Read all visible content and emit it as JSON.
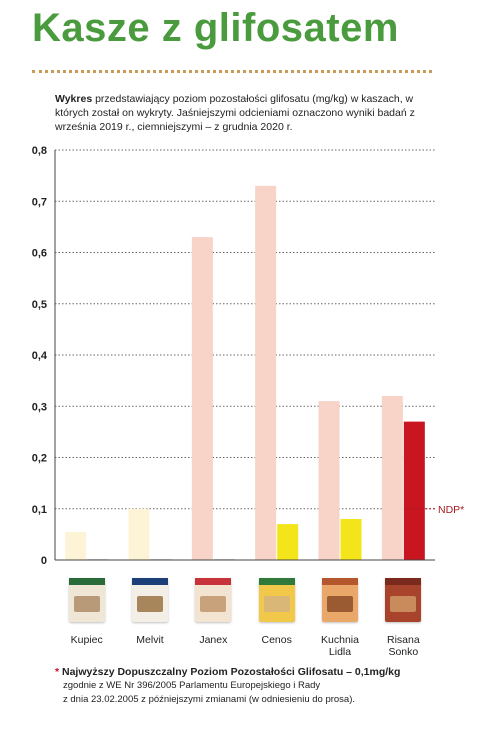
{
  "header": {
    "title": "Kasze z glifosatem",
    "desc_bold": "Wykres",
    "desc_rest": " przedstawiający poziom pozostałości glifosatu (mg/kg) w kaszach, w których został on wykryty. Jaśniejszymi odcieniami oznaczono wyniki badań z września 2019 r., ciemniejszymi – z grudnia 2020 r."
  },
  "chart_data": {
    "type": "bar",
    "categories": [
      "Kupiec",
      "Melvit",
      "Janex",
      "Cenos",
      "Kuchnia Lidla",
      "Risana Sonko"
    ],
    "category_lines": [
      [
        "Kupiec"
      ],
      [
        "Melvit"
      ],
      [
        "Janex"
      ],
      [
        "Cenos"
      ],
      [
        "Kuchnia",
        "Lidla"
      ],
      [
        "Risana",
        "Sonko"
      ]
    ],
    "series": [
      {
        "values": [
          0.055,
          0.1,
          0.63,
          0.73,
          0.31,
          0.32
        ]
      },
      {
        "values": [
          0.002,
          0.002,
          0.002,
          0.07,
          0.08,
          0.27
        ]
      }
    ],
    "light_colors": [
      "#fdf3d6",
      "#fdf3d6",
      "#f7d3c8",
      "#f7d3c8",
      "#f7d3c8",
      "#f7d3c8"
    ],
    "dark_colors": [
      "#d8d8d8",
      "#d8d8d8",
      "#d8d8d8",
      "#f4e51a",
      "#f4e51a",
      "#c9151f"
    ],
    "yticks": [
      "0",
      "0,1",
      "0,2",
      "0,3",
      "0,4",
      "0,5",
      "0,6",
      "0,7",
      "0,8"
    ],
    "ylim": [
      0,
      0.8
    ],
    "ndp_value": 0.1,
    "ndp_label": "NDP*",
    "grid": true,
    "ndp_color": "#a51c24"
  },
  "packages": [
    {
      "name": "kupiec-package-icon",
      "top": "#2a6b3a",
      "body": "#efe6d6",
      "win": "#b89a78"
    },
    {
      "name": "melvit-package-icon",
      "top": "#1c3f7a",
      "body": "#f3efe7",
      "win": "#a7865b"
    },
    {
      "name": "janex-package-icon",
      "top": "#c8323a",
      "body": "#f3e4d2",
      "win": "#c8a27a"
    },
    {
      "name": "cenos-package-icon",
      "top": "#2f7a3a",
      "body": "#f2c84a",
      "win": "#d9b877"
    },
    {
      "name": "kuchnia-lidla-package-icon",
      "top": "#b5572d",
      "body": "#e9a86a",
      "win": "#9a5b32"
    },
    {
      "name": "risana-sonko-package-icon",
      "top": "#7a2b1e",
      "body": "#a8432c",
      "win": "#c98a5c"
    }
  ],
  "footnote": {
    "star": "*",
    "line1": " Najwyższy Dopuszczalny Poziom Pozostałości Glifosatu – 0,1mg/kg",
    "line2": "zgodnie z WE Nr 396/2005 Parlamentu Europejskiego i Rady",
    "line3": "z dnia 23.02.2005 z późniejszymi zmianami (w odniesieniu do prosa)."
  }
}
